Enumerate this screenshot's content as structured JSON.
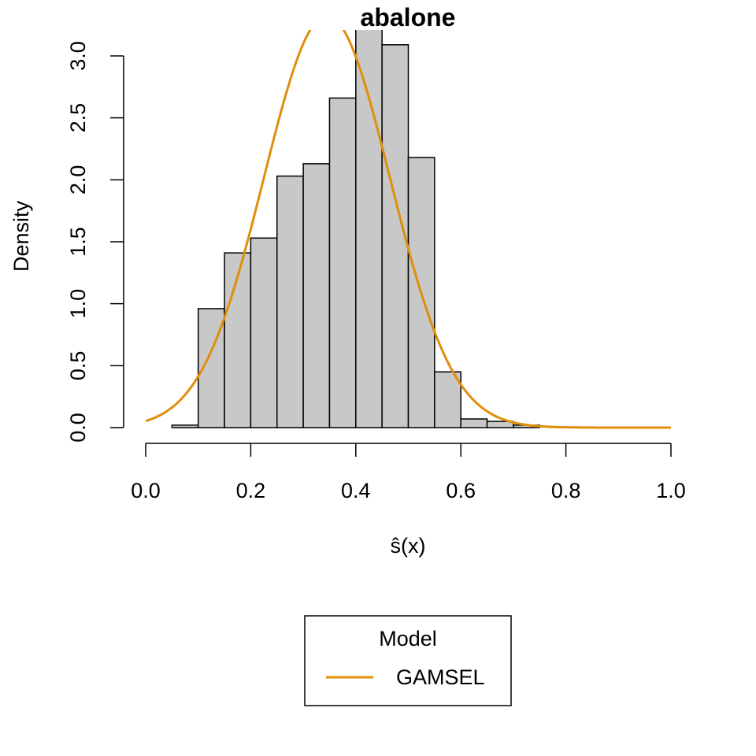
{
  "chart_data": {
    "type": "bar",
    "title": "abalone",
    "xlabel": "ŝ(x)",
    "ylabel": "Density",
    "xlim": [
      0.0,
      1.0
    ],
    "ylim": [
      0.0,
      3.0
    ],
    "x_ticks": [
      "0.0",
      "0.2",
      "0.4",
      "0.6",
      "0.8",
      "1.0"
    ],
    "y_ticks": [
      "0.0",
      "0.5",
      "1.0",
      "1.5",
      "2.0",
      "2.5",
      "3.0"
    ],
    "histogram": {
      "bin_edges": [
        0.05,
        0.1,
        0.15,
        0.2,
        0.25,
        0.3,
        0.35,
        0.4,
        0.45,
        0.5,
        0.55,
        0.6,
        0.65,
        0.7,
        0.75
      ],
      "values": [
        0.02,
        0.96,
        1.41,
        1.53,
        2.03,
        2.13,
        2.66,
        3.22,
        3.09,
        2.18,
        0.45,
        0.07,
        0.05,
        0.02
      ],
      "fill_color": "#c8c8c8",
      "border_color": "#000000"
    },
    "series": [
      {
        "name": "GAMSEL",
        "type": "line",
        "color": "#e08e0b",
        "density_curve": {
          "mean": 0.345,
          "sd": 0.12,
          "x_range": [
            0.0,
            1.0
          ]
        }
      }
    ],
    "legend": {
      "title": "Model",
      "placement": "bottom-center",
      "entries": [
        "GAMSEL"
      ]
    },
    "grid": false
  }
}
